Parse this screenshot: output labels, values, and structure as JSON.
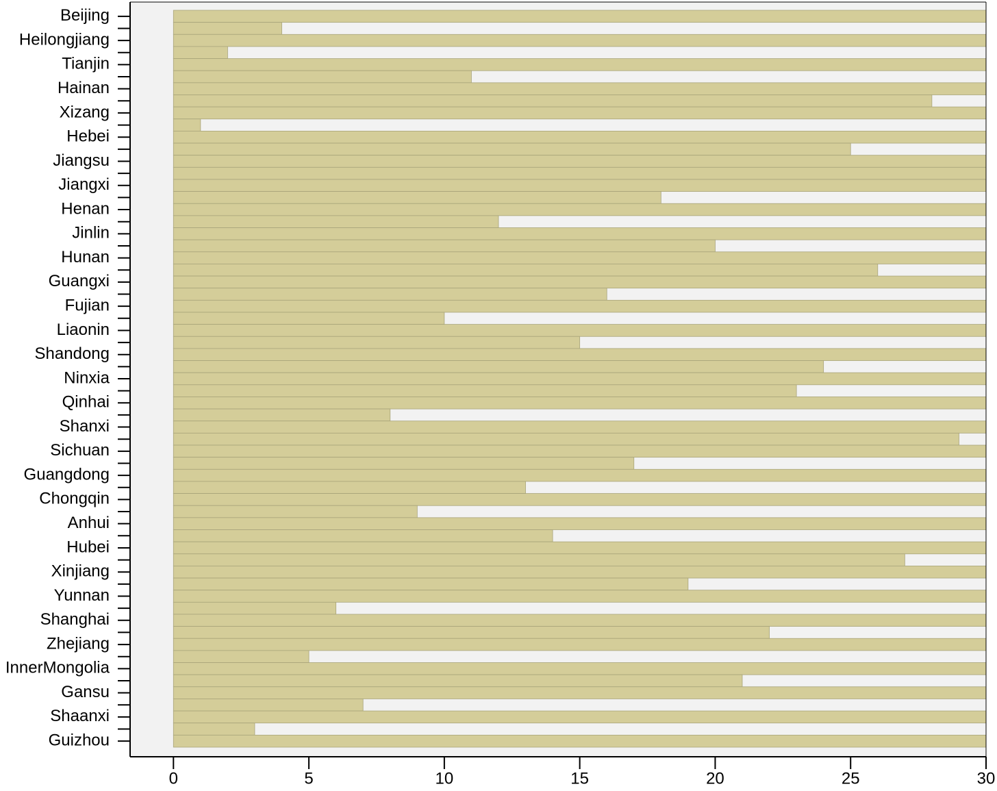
{
  "chart_data": {
    "type": "barh",
    "categories": [
      "Beijing",
      null,
      "Heilongjiang",
      null,
      "Tianjin",
      null,
      "Hainan",
      null,
      "Xizang",
      null,
      "Hebei",
      null,
      "Jiangsu",
      null,
      "Jiangxi",
      null,
      "Henan",
      null,
      "Jinlin",
      null,
      "Hunan",
      null,
      "Guangxi",
      null,
      "Fujian",
      null,
      "Liaonin",
      null,
      "Shandong",
      null,
      "Ninxia",
      null,
      "Qinhai",
      null,
      "Shanxi",
      null,
      "Sichuan",
      null,
      "Guangdong",
      null,
      "Chongqin",
      null,
      "Anhui",
      null,
      "Hubei",
      null,
      "Xinjiang",
      null,
      "Yunnan",
      null,
      "Shanghai",
      null,
      "Zhejiang",
      null,
      "InnerMongolia",
      null,
      "Gansu",
      null,
      "Shaanxi",
      null,
      "Guizhou"
    ],
    "values": [
      30,
      4,
      30,
      2,
      30,
      11,
      30,
      28,
      30,
      1,
      30,
      25,
      30,
      30,
      30,
      18,
      30,
      12,
      30,
      20,
      30,
      26,
      30,
      16,
      30,
      10,
      30,
      15,
      30,
      24,
      30,
      23,
      30,
      8,
      30,
      29,
      30,
      17,
      30,
      13,
      30,
      9,
      30,
      14,
      30,
      27,
      30,
      19,
      30,
      6,
      30,
      22,
      30,
      5,
      30,
      21,
      30,
      7,
      30,
      3,
      30
    ],
    "color": "#d4cd99",
    "xlim": [
      -1.6,
      30
    ],
    "xticks": [
      0,
      5,
      10,
      15,
      20,
      25,
      30
    ]
  }
}
